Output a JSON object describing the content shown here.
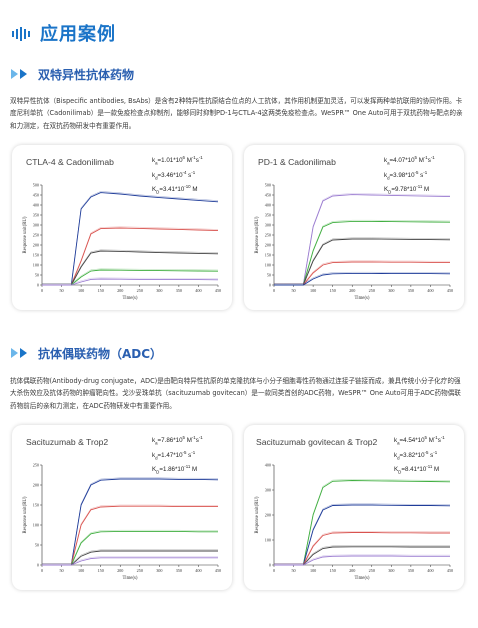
{
  "header": {
    "title": "应用案例",
    "accent": "#1a74c8"
  },
  "section1": {
    "title": "双特异性抗体药物",
    "paragraph": "双特异性抗体（Bispecific antibodies, BsAbs）是含有2种特异性抗原结合位点的人工抗体，其作用机制更加灵活，可以发挥两种单抗联用的协同作用。卡度尼利单抗（Cadonilimab）是一款免疫检查点抑制剂，能够同时抑制PD-1与CTLA-4这两类免疫检查点。WeSPR™ One Auto可用于双抗药物与靶点的亲和力测定，在双抗药物研发中有重要作用。"
  },
  "section2": {
    "title": "抗体偶联药物（ADC）",
    "paragraph": "抗体偶联药物(Antibody-drug conjugate，ADC)是由靶向特异性抗原的单克隆抗体与小分子细胞毒性药物通过连接子链接而成，兼具传统小分子化疗的强大杀伤效应及抗体药物的肿瘤靶向性。戈沙妥珠单抗（sacituzumab govitecan）是一款同类首创的ADC药物，WeSPR™ One Auto可用于ADC药物偶联药物前后的亲和力测定，在ADC药物研发中有重要作用。"
  },
  "charts": [
    {
      "title": "CTLA-4 & Cadonilimab",
      "ka": "1.01*10",
      "ka_exp": "6",
      "ka_unit": " M",
      "ka_unit_exp": "-1",
      "ka_unit2": "s",
      "ka_unit2_exp": "-1",
      "kd": "3.46*10",
      "kd_exp": "-4",
      "kd_unit": " s",
      "kd_unit_exp": "-1",
      "KD": "3.41*10",
      "KD_exp": "-10",
      "KD_unit": " M",
      "ylabel": "Response unit(RU)",
      "xlabel": "Time(s)",
      "yticks": [
        "0",
        "50",
        "100",
        "150",
        "200",
        "250",
        "300",
        "350",
        "400",
        "450",
        "500"
      ],
      "xticks": [
        "0",
        "50",
        "100",
        "150",
        "200",
        "250",
        "300",
        "350",
        "400",
        "450"
      ]
    },
    {
      "title": "PD-1 & Cadonilimab",
      "ka": "4.07*10",
      "ka_exp": "5",
      "ka_unit": " M",
      "ka_unit_exp": "-1",
      "ka_unit2": "s",
      "ka_unit2_exp": "-1",
      "kd": "3.98*10",
      "kd_exp": "-5",
      "kd_unit": " s",
      "kd_unit_exp": "-1",
      "KD": "9.78*10",
      "KD_exp": "-11",
      "KD_unit": " M",
      "ylabel": "Response unit(RU)",
      "xlabel": "Time(s)",
      "yticks": [
        "0",
        "50",
        "100",
        "150",
        "200",
        "250",
        "300",
        "350",
        "400",
        "450",
        "500"
      ],
      "xticks": [
        "0",
        "50",
        "100",
        "150",
        "200",
        "250",
        "300",
        "350",
        "400",
        "450"
      ]
    },
    {
      "title": "Sacituzumab & Trop2",
      "ka": "7.86*10",
      "ka_exp": "5",
      "ka_unit": " M",
      "ka_unit_exp": "-1",
      "ka_unit2": "s",
      "ka_unit2_exp": "-1",
      "kd": "1.47*10",
      "kd_exp": "-5",
      "kd_unit": " s",
      "kd_unit_exp": "-1",
      "KD": "1.86*10",
      "KD_exp": "-11",
      "KD_unit": " M",
      "ylabel": "Response unit(RU)",
      "xlabel": "Time(s)",
      "yticks": [
        "0",
        "50",
        "100",
        "150",
        "200",
        "250"
      ],
      "xticks": [
        "0",
        "50",
        "100",
        "150",
        "200",
        "250",
        "300",
        "350",
        "400",
        "450"
      ]
    },
    {
      "title": "Sacituzumab govitecan & Trop2",
      "ka": "4.54*10",
      "ka_exp": "5",
      "ka_unit": " M",
      "ka_unit_exp": "-1",
      "ka_unit2": "s",
      "ka_unit2_exp": "-1",
      "kd": "3.82*10",
      "kd_exp": "-5",
      "kd_unit": " s",
      "kd_unit_exp": "-1",
      "KD": "8.41*10",
      "KD_exp": "-11",
      "KD_unit": " M",
      "ylabel": "Response unit(RU)",
      "xlabel": "Time(s)",
      "yticks": [
        "0",
        "100",
        "200",
        "300",
        "400"
      ],
      "xticks": [
        "0",
        "50",
        "100",
        "150",
        "200",
        "250",
        "300",
        "350",
        "400",
        "450"
      ]
    }
  ],
  "chart_data": [
    {
      "type": "line",
      "title": "CTLA-4 & Cadonilimab",
      "xlabel": "Time(s)",
      "ylabel": "Response unit(RU)",
      "xlim": [
        0,
        450
      ],
      "ylim": [
        0,
        500
      ],
      "x": [
        0,
        25,
        50,
        75,
        100,
        125,
        150,
        200,
        250,
        300,
        350,
        400,
        450
      ],
      "series": [
        {
          "color": "#1f3c99",
          "values": [
            0,
            0,
            0,
            0,
            380,
            440,
            462,
            455,
            445,
            437,
            430,
            423,
            416
          ]
        },
        {
          "color": "#d9534f",
          "values": [
            0,
            0,
            0,
            0,
            120,
            255,
            282,
            285,
            283,
            280,
            278,
            275,
            272
          ]
        },
        {
          "color": "#444444",
          "values": [
            0,
            0,
            0,
            0,
            90,
            160,
            170,
            168,
            165,
            162,
            160,
            158,
            156
          ]
        },
        {
          "color": "#3fae3f",
          "values": [
            0,
            0,
            0,
            0,
            40,
            70,
            75,
            74,
            73,
            72,
            71,
            70,
            69
          ]
        },
        {
          "color": "#9a7bd0",
          "values": [
            0,
            0,
            0,
            0,
            15,
            28,
            30,
            29,
            28,
            28,
            27,
            27,
            26
          ]
        }
      ]
    },
    {
      "type": "line",
      "title": "PD-1 & Cadonilimab",
      "xlabel": "Time(s)",
      "ylabel": "Response unit(RU)",
      "xlim": [
        0,
        450
      ],
      "ylim": [
        0,
        500
      ],
      "x": [
        0,
        25,
        50,
        75,
        100,
        125,
        150,
        200,
        250,
        300,
        350,
        400,
        450
      ],
      "series": [
        {
          "color": "#9a7bd0",
          "values": [
            0,
            0,
            0,
            0,
            290,
            420,
            445,
            452,
            450,
            448,
            446,
            444,
            442
          ]
        },
        {
          "color": "#3fae3f",
          "values": [
            0,
            0,
            0,
            0,
            170,
            290,
            312,
            318,
            318,
            317,
            316,
            315,
            314
          ]
        },
        {
          "color": "#444444",
          "values": [
            0,
            0,
            0,
            0,
            120,
            200,
            225,
            230,
            230,
            229,
            228,
            227,
            226
          ]
        },
        {
          "color": "#d9534f",
          "values": [
            0,
            0,
            0,
            0,
            60,
            100,
            112,
            115,
            115,
            114,
            114,
            113,
            113
          ]
        },
        {
          "color": "#1f3c99",
          "values": [
            0,
            0,
            0,
            0,
            30,
            50,
            56,
            58,
            58,
            57,
            57,
            57,
            56
          ]
        }
      ]
    },
    {
      "type": "line",
      "title": "Sacituzumab & Trop2",
      "xlabel": "Time(s)",
      "ylabel": "Response unit(RU)",
      "xlim": [
        0,
        450
      ],
      "ylim": [
        0,
        250
      ],
      "x": [
        0,
        25,
        50,
        75,
        100,
        125,
        150,
        200,
        250,
        300,
        350,
        400,
        450
      ],
      "series": [
        {
          "color": "#1f3c99",
          "values": [
            0,
            0,
            0,
            0,
            150,
            200,
            212,
            215,
            215,
            215,
            214,
            214,
            213
          ]
        },
        {
          "color": "#d9534f",
          "values": [
            0,
            0,
            0,
            0,
            100,
            138,
            145,
            147,
            147,
            147,
            146,
            146,
            146
          ]
        },
        {
          "color": "#3fae3f",
          "values": [
            0,
            0,
            0,
            0,
            55,
            78,
            83,
            84,
            84,
            84,
            84,
            83,
            83
          ]
        },
        {
          "color": "#444444",
          "values": [
            0,
            0,
            0,
            0,
            22,
            32,
            35,
            35,
            35,
            35,
            35,
            35,
            35
          ]
        },
        {
          "color": "#9a7bd0",
          "values": [
            0,
            0,
            0,
            0,
            10,
            16,
            18,
            18,
            18,
            18,
            18,
            18,
            18
          ]
        }
      ]
    },
    {
      "type": "line",
      "title": "Sacituzumab govitecan & Trop2",
      "xlabel": "Time(s)",
      "ylabel": "Response unit(RU)",
      "xlim": [
        0,
        450
      ],
      "ylim": [
        0,
        400
      ],
      "x": [
        0,
        25,
        50,
        75,
        100,
        125,
        150,
        200,
        250,
        300,
        350,
        400,
        450
      ],
      "series": [
        {
          "color": "#3fae3f",
          "values": [
            0,
            0,
            0,
            0,
            200,
            310,
            335,
            338,
            337,
            336,
            335,
            334,
            333
          ]
        },
        {
          "color": "#1f3c99",
          "values": [
            0,
            0,
            0,
            0,
            140,
            220,
            238,
            240,
            240,
            239,
            238,
            238,
            237
          ]
        },
        {
          "color": "#d9534f",
          "values": [
            0,
            0,
            0,
            0,
            75,
            118,
            128,
            130,
            130,
            129,
            129,
            128,
            128
          ]
        },
        {
          "color": "#444444",
          "values": [
            0,
            0,
            0,
            0,
            42,
            66,
            72,
            73,
            73,
            73,
            72,
            72,
            72
          ]
        },
        {
          "color": "#9a7bd0",
          "values": [
            0,
            0,
            0,
            0,
            20,
            32,
            35,
            36,
            36,
            36,
            35,
            35,
            35
          ]
        }
      ]
    }
  ]
}
